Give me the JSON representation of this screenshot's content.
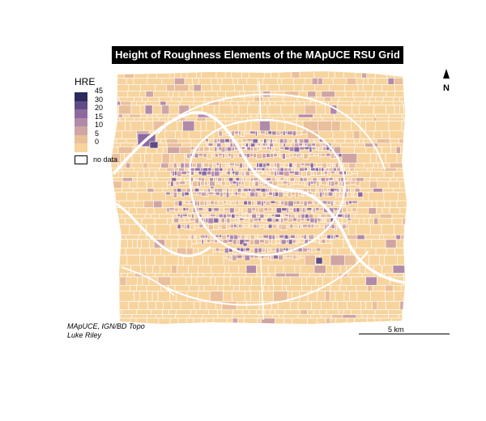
{
  "map": {
    "title": "Height of Roughness Elements of the MApUCE RSU Grid",
    "legend": {
      "title": "HRE",
      "classes": [
        {
          "label": "45",
          "color": "#2b2a5c"
        },
        {
          "label": "30",
          "color": "#5e4c85"
        },
        {
          "label": "20",
          "color": "#8c6aa0"
        },
        {
          "label": "15",
          "color": "#b28aa9"
        },
        {
          "label": "10",
          "color": "#cfa5a3"
        },
        {
          "label": "5",
          "color": "#eabf9b"
        },
        {
          "label": "0",
          "color": "#f7d49e"
        }
      ],
      "no_data_label": "no data"
    },
    "north_label": "N",
    "scale_label": "5 km",
    "credits_line1": "MApUCE, IGN/BD Topo",
    "credits_line2": "Luke Riley",
    "colors": {
      "base": "#f7d49e",
      "boundary": "#ffffff",
      "high_density": "#8c6aa0"
    }
  }
}
